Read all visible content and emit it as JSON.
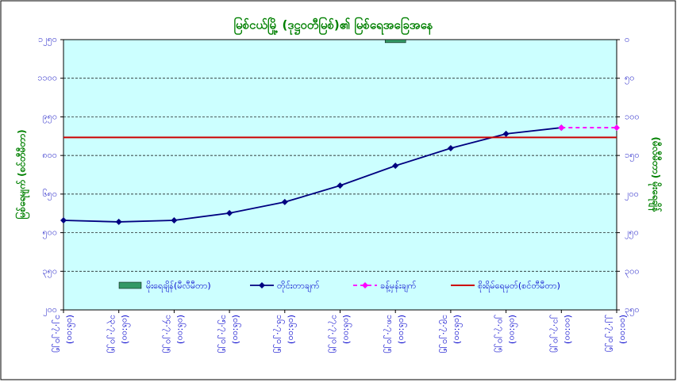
{
  "chart_data": {
    "type": "line",
    "title": "မြစ်ငယ်မြို့ (ဒုဋ္ဌဝတီမြစ်)၏ မြစ်ရေအခြေအနေ",
    "y_label": "မြစ်ရေမျက် (စင်တီမီတာ)",
    "y2_label": "(မီလီမီတာ) မိုးရေချိန်",
    "categories": [
      "၁၂.၇.၂၀၂၅",
      "၁၃.၇.၂၀၂၅",
      "၁၄.၇.၂၀၂၅",
      "၁၅.၇.၂၀၂၅",
      "၁၆.၇.၂၀၂၅",
      "၁၇.၇.၂၀၂၅",
      "၁၈.၇.၂၀၂၅",
      "၁၉.၇.၂၀၂၅",
      "၂၀.၇.၂၀၂၅",
      "၂၁.၇.၂၀၂၅",
      "၂၂.၇.၂၀၂၅"
    ],
    "times": [
      "(၀၆:၀၀)",
      "(၀၆:၀၀)",
      "(၀၆:၀၀)",
      "(၀၆:၀၀)",
      "(၀၆:၀၀)",
      "(၀၆:၀၀)",
      "(၀၆:၀၀)",
      "(၀၆:၀၀)",
      "(၀၆:၀၀)",
      "(၀၀:၀၀)",
      "(၀၀:၀၀)"
    ],
    "ylim": [
      200,
      1250
    ],
    "yticks": [
      {
        "value": 200,
        "label": "၂၀၀"
      },
      {
        "value": 350,
        "label": "၃၅၀"
      },
      {
        "value": 500,
        "label": "၅၀၀"
      },
      {
        "value": 650,
        "label": "၆၅၀"
      },
      {
        "value": 800,
        "label": "၈၀၀"
      },
      {
        "value": 950,
        "label": "၉၅၀"
      },
      {
        "value": 1100,
        "label": "၁၁၀၀"
      },
      {
        "value": 1250,
        "label": "၁၂၅၀"
      }
    ],
    "y2lim": [
      350,
      0
    ],
    "y2ticks": [
      {
        "value": 0,
        "label": "၀"
      },
      {
        "value": 50,
        "label": "၅၀"
      },
      {
        "value": 100,
        "label": "၁၀၀"
      },
      {
        "value": 150,
        "label": "၁၅၀"
      },
      {
        "value": 200,
        "label": "၂၀၀"
      },
      {
        "value": 250,
        "label": "၂၅၀"
      },
      {
        "value": 300,
        "label": "၃၀၀"
      },
      {
        "value": 350,
        "label": "၃၅၀"
      }
    ],
    "grid": true,
    "series": [
      {
        "name": "မိုးရေချိန်(မီလီမီတာ)",
        "kind": "bar",
        "axis": "y2",
        "color": "#339966",
        "values": [
          0,
          0,
          0,
          0,
          0,
          0,
          4,
          0,
          0,
          0,
          0
        ]
      },
      {
        "name": "တိုင်းတာချက်",
        "kind": "line",
        "color": "#000080",
        "values": [
          548,
          542,
          548,
          576,
          619,
          683,
          760,
          828,
          884,
          908,
          null
        ]
      },
      {
        "name": "ခန့်မှန်းချက်",
        "kind": "dashed",
        "color": "#ff00ff",
        "values": [
          null,
          null,
          null,
          null,
          null,
          null,
          null,
          null,
          null,
          908,
          908
        ]
      }
    ],
    "threshold": {
      "name": "စိုးရိမ်ရေမှတ်(စင်တီမီတာ)",
      "value": 870,
      "color": "#cc0000"
    }
  }
}
